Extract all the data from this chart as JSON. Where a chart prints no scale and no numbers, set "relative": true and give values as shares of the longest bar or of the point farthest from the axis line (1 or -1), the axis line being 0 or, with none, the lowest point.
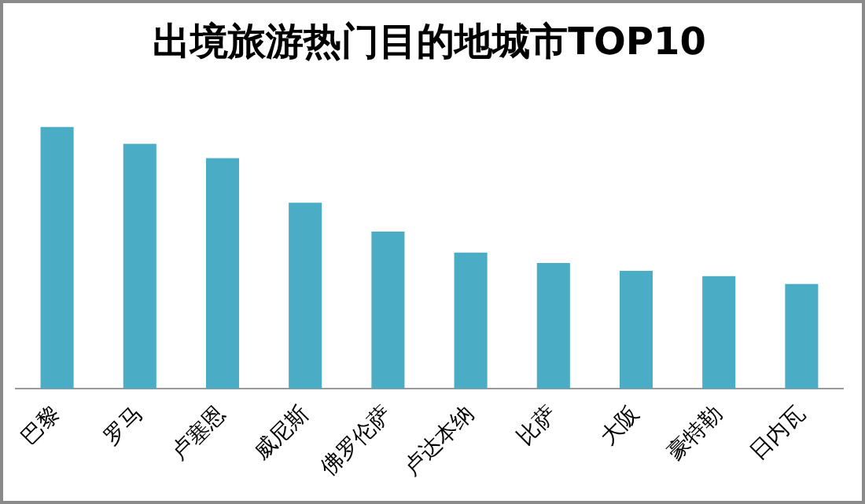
{
  "chart_data": {
    "type": "bar",
    "title": "出境旅游热门目的地城市TOP10",
    "categories": [
      "巴黎",
      "罗马",
      "卢塞恩",
      "威尼斯",
      "佛罗伦萨",
      "卢达本纳",
      "比萨",
      "大阪",
      "豪特勒",
      "日内瓦"
    ],
    "values": [
      1,
      0.935,
      0.88,
      0.71,
      0.6,
      0.52,
      0.48,
      0.45,
      0.43,
      0.4
    ],
    "color": "#4bacc6",
    "relative": true,
    "grid": false,
    "legend": false
  }
}
